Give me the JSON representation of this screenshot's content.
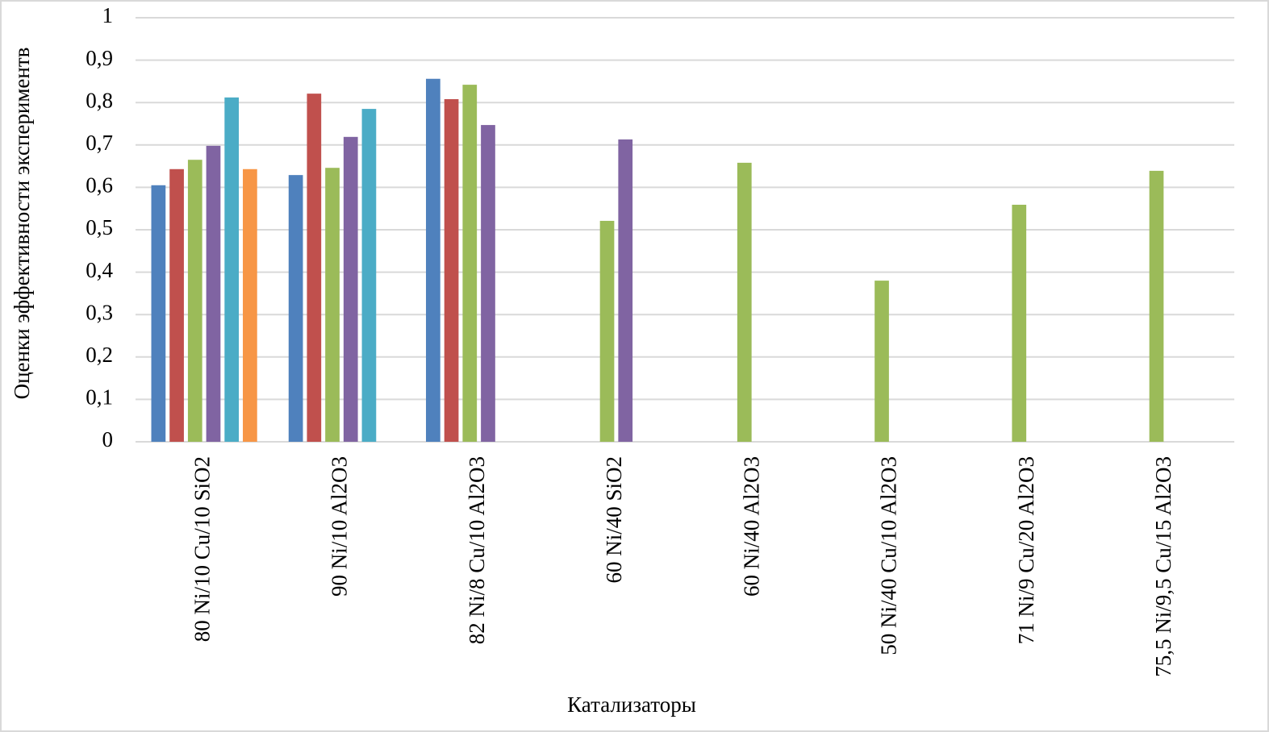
{
  "chart_data": {
    "type": "bar",
    "categories": [
      "80 Ni/10 Cu/10 SiO2",
      "90 Ni/10 Al2O3",
      "82 Ni/8 Cu/10 Al2O3",
      "60 Ni/40 SiO2",
      "60 Ni/40 Al2O3",
      "50 Ni/40 Cu/10 Al2O3",
      "71 Ni/9 Cu/20 Al2O3",
      "75,5 Ni/9,5 Cu/15 Al2O3"
    ],
    "series": [
      {
        "color": "#4f81bd",
        "values": [
          0.605,
          0.629,
          0.856,
          null,
          null,
          null,
          null,
          null
        ]
      },
      {
        "color": "#c0504d",
        "values": [
          0.643,
          0.821,
          0.808,
          null,
          null,
          null,
          null,
          null
        ]
      },
      {
        "color": "#9bbb59",
        "values": [
          0.665,
          0.646,
          0.842,
          0.521,
          0.658,
          0.38,
          0.559,
          0.639
        ]
      },
      {
        "color": "#8064a2",
        "values": [
          0.698,
          0.719,
          0.747,
          0.713,
          null,
          null,
          null,
          null
        ]
      },
      {
        "color": "#4bacc6",
        "values": [
          0.812,
          0.785,
          null,
          null,
          null,
          null,
          null,
          null
        ]
      },
      {
        "color": "#f79646",
        "values": [
          0.643,
          null,
          null,
          null,
          null,
          null,
          null,
          null
        ]
      }
    ],
    "xlabel": "Катализаторы",
    "ylabel": "Оценки эффективности экспериментв",
    "ylim": [
      0,
      1
    ],
    "yticks": [
      0,
      {
        "value": 0.1,
        "label": "0,1"
      },
      {
        "value": 0.2,
        "label": "0,2"
      },
      {
        "value": 0.3,
        "label": "0,3"
      },
      {
        "value": 0.4,
        "label": "0,4"
      },
      {
        "value": 0.5,
        "label": "0,5"
      },
      {
        "value": 0.6,
        "label": "0,6"
      },
      {
        "value": 0.7,
        "label": "0,7"
      },
      {
        "value": 0.8,
        "label": "0,8"
      },
      {
        "value": 0.9,
        "label": "0,9"
      },
      1
    ],
    "grid": true
  }
}
